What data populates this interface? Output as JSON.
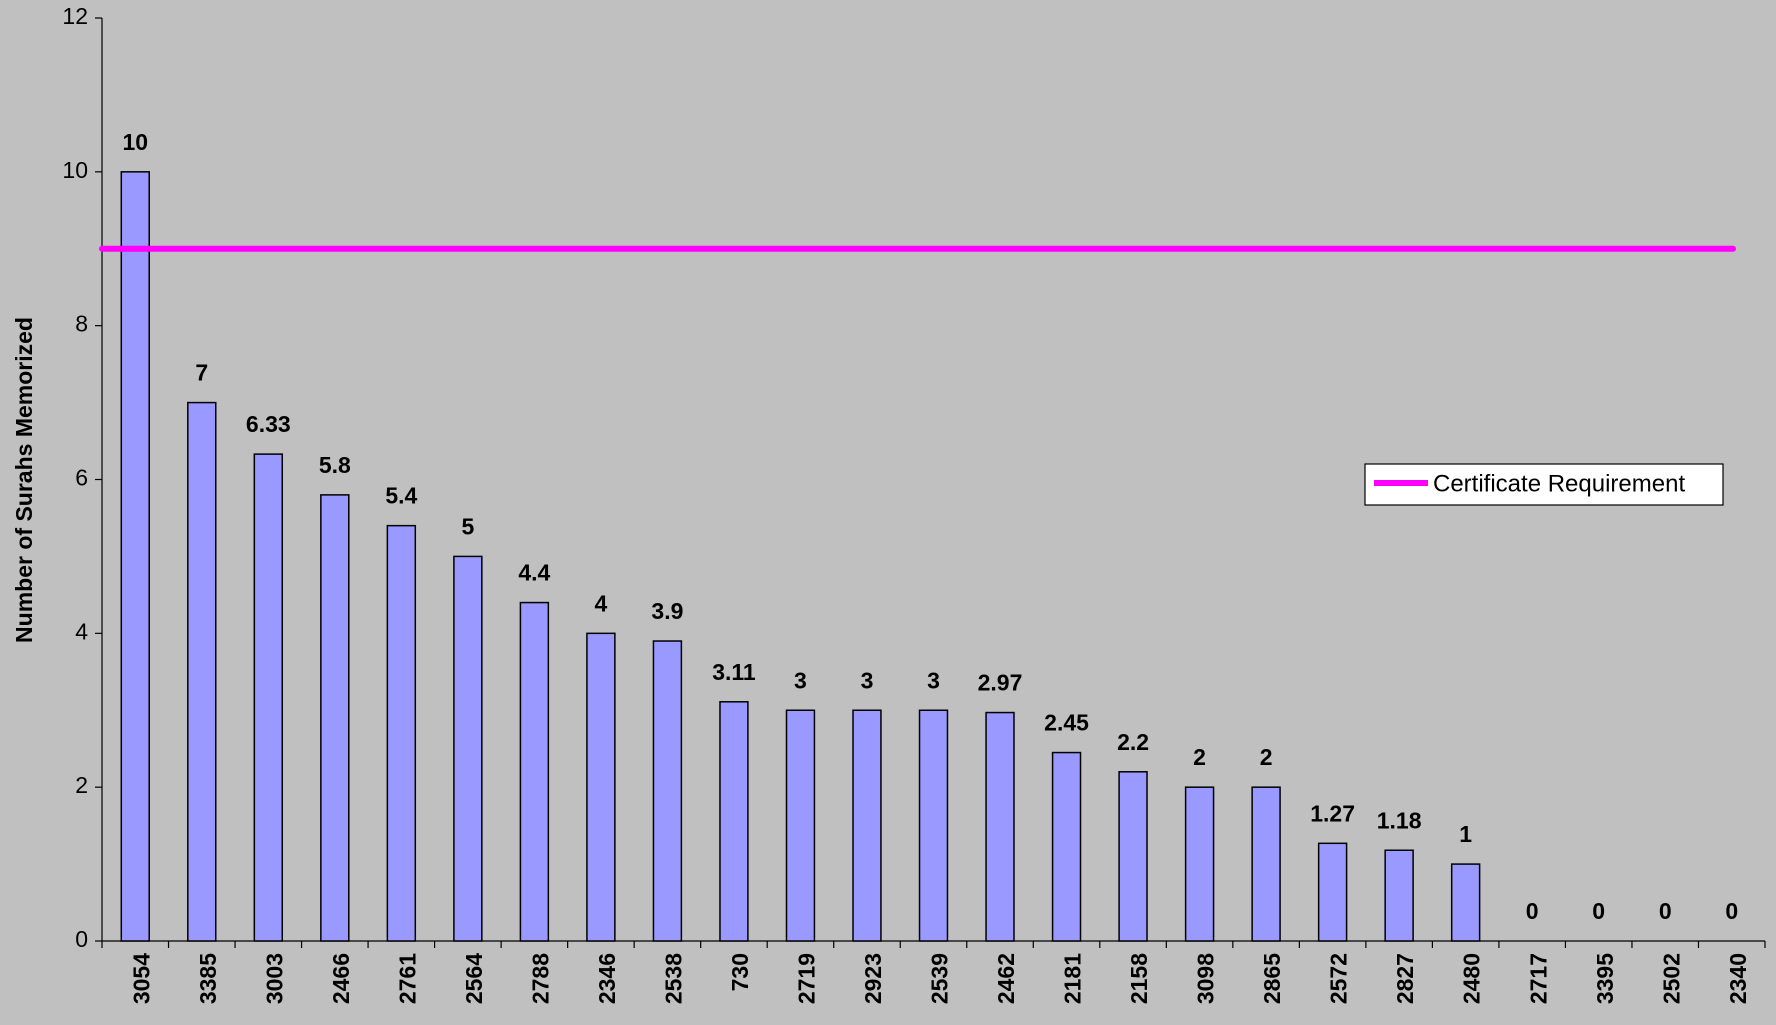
{
  "chart_data": {
    "type": "bar",
    "ylabel": "Number of Surahs Memorized",
    "categories": [
      "3054",
      "3385",
      "3003",
      "2466",
      "2761",
      "2564",
      "2788",
      "2346",
      "2538",
      "730",
      "2719",
      "2923",
      "2539",
      "2462",
      "2181",
      "2158",
      "3098",
      "2865",
      "2572",
      "2827",
      "2480",
      "2717",
      "3395",
      "2502",
      "2340"
    ],
    "values": [
      10,
      7,
      6.33,
      5.8,
      5.4,
      5,
      4.4,
      4,
      3.9,
      3.11,
      3,
      3,
      3,
      2.97,
      2.45,
      2.2,
      2,
      2,
      1.27,
      1.18,
      1,
      0,
      0,
      0,
      0
    ],
    "color": "#9999ff",
    "reference": {
      "name": "Certificate Requirement",
      "value": 9,
      "color": "#ff00ff"
    },
    "ylim": [
      0,
      12
    ],
    "yticks": [
      0,
      2,
      4,
      6,
      8,
      10,
      12
    ],
    "grid": false
  }
}
